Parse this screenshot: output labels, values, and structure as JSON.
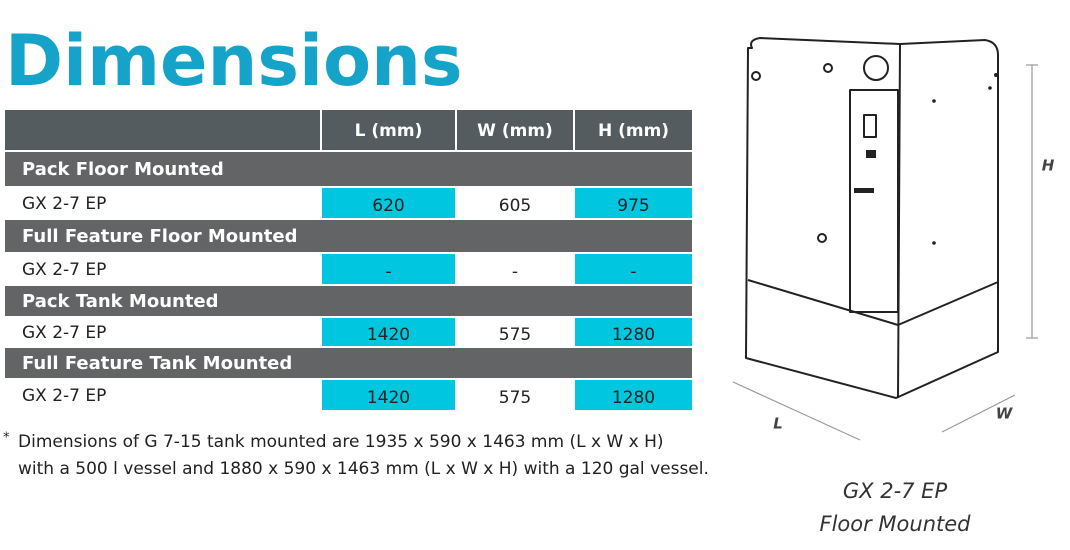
{
  "title": "Dimensions",
  "table": {
    "columns": [
      "L (mm)",
      "W (mm)",
      "H (mm)"
    ],
    "sections": [
      {
        "title": "Pack Floor Mounted",
        "rows": [
          {
            "model": "GX 2-7 EP",
            "cells": [
              "620",
              "605",
              "975"
            ]
          }
        ]
      },
      {
        "title": "Full Feature Floor Mounted",
        "rows": [
          {
            "model": "GX 2-7 EP",
            "cells": [
              "-",
              "-",
              "-"
            ]
          }
        ]
      },
      {
        "title": "Pack Tank Mounted",
        "rows": [
          {
            "model": "GX 2-7 EP",
            "cells": [
              "1420",
              "575",
              "1280"
            ]
          }
        ]
      },
      {
        "title": "Full Feature Tank Mounted",
        "rows": [
          {
            "model": "GX 2-7 EP",
            "cells": [
              "1420",
              "575",
              "1280"
            ]
          }
        ]
      }
    ]
  },
  "footnote": {
    "marker": "*",
    "lines": [
      "Dimensions of G 7-15 tank mounted are 1935 x 590 x 1463 mm (L x W x H)",
      "with a 500 l vessel and 1880 x 590 x 1463 mm (L x W x H) with a 120 gal vessel."
    ]
  },
  "drawing": {
    "dimension_labels": {
      "height": "H",
      "length": "L",
      "width": "W"
    },
    "caption": [
      "GX 2-7 EP",
      "Floor Mounted"
    ]
  }
}
